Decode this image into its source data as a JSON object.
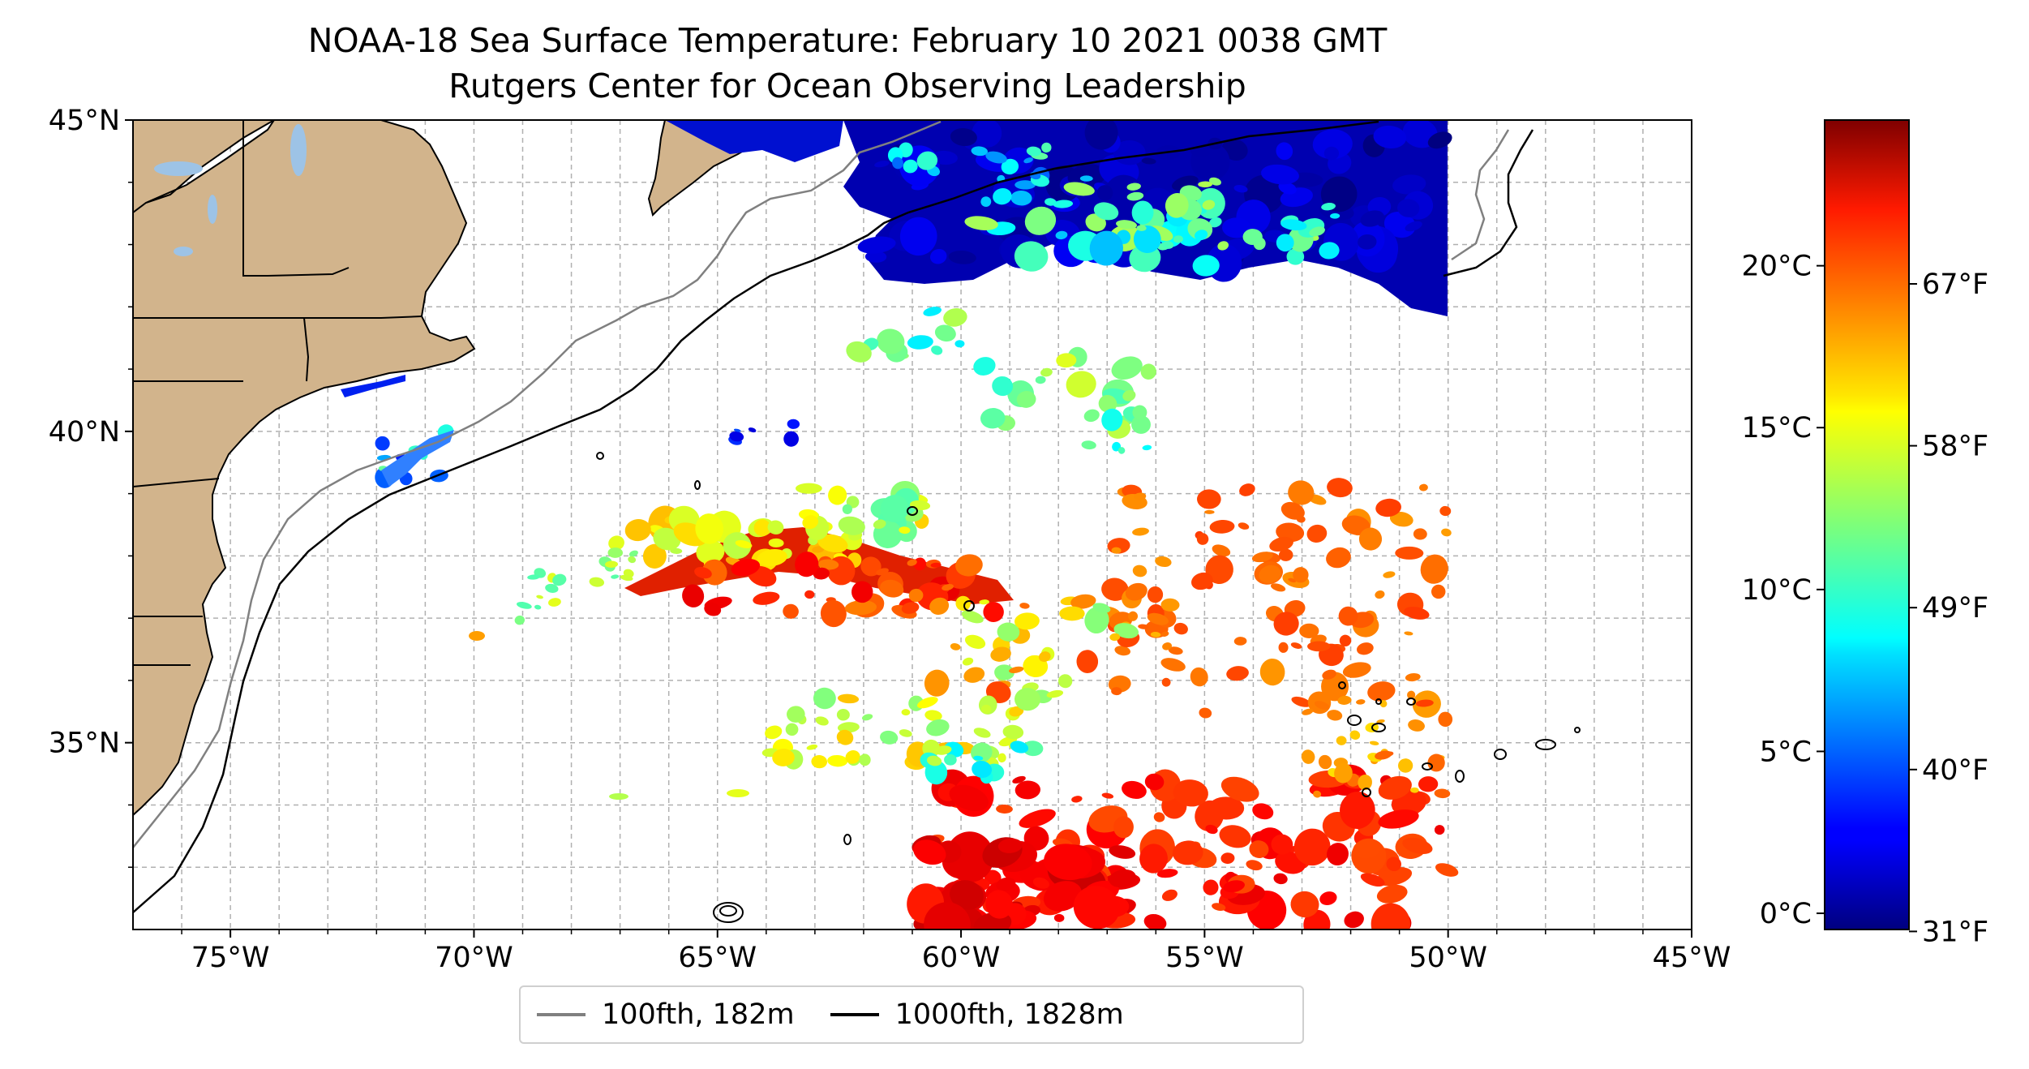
{
  "title": {
    "line1": "NOAA-18 Sea Surface Temperature: February 10 2021 0038 GMT",
    "line2": "Rutgers Center for Ocean Observing Leadership"
  },
  "map": {
    "lon_range": [
      -77,
      -45
    ],
    "lat_range": [
      32,
      45
    ],
    "lat_ticks": [
      {
        "value": 45,
        "label": "45°N"
      },
      {
        "value": 40,
        "label": "40°N"
      },
      {
        "value": 35,
        "label": "35°N"
      }
    ],
    "lon_ticks": [
      {
        "value": -75,
        "label": "75°W"
      },
      {
        "value": -70,
        "label": "70°W"
      },
      {
        "value": -65,
        "label": "65°W"
      },
      {
        "value": -60,
        "label": "60°W"
      },
      {
        "value": -55,
        "label": "55°W"
      },
      {
        "value": -50,
        "label": "50°W"
      },
      {
        "value": -45,
        "label": "45°W"
      }
    ],
    "grid": true,
    "land_color": "#d2b48c",
    "lake_color": "#9dc3e6",
    "ocean_color": "#ffffff"
  },
  "colorbar": {
    "colormap": "jet",
    "min_c": -0.5,
    "max_c": 24.5,
    "celsius_ticks": [
      {
        "value": 0,
        "label": "0°C"
      },
      {
        "value": 5,
        "label": "5°C"
      },
      {
        "value": 10,
        "label": "10°C"
      },
      {
        "value": 15,
        "label": "15°C"
      },
      {
        "value": 20,
        "label": "20°C"
      }
    ],
    "fahrenheit_ticks": [
      {
        "value_c": -0.56,
        "label": "31°F"
      },
      {
        "value_c": 4.44,
        "label": "40°F"
      },
      {
        "value_c": 9.44,
        "label": "49°F"
      },
      {
        "value_c": 14.44,
        "label": "58°F"
      },
      {
        "value_c": 19.44,
        "label": "67°F"
      }
    ]
  },
  "legend": {
    "items": [
      {
        "label": "100fth, 182m",
        "color": "#808080"
      },
      {
        "label": "1000fth, 1828m",
        "color": "#000000"
      }
    ]
  }
}
